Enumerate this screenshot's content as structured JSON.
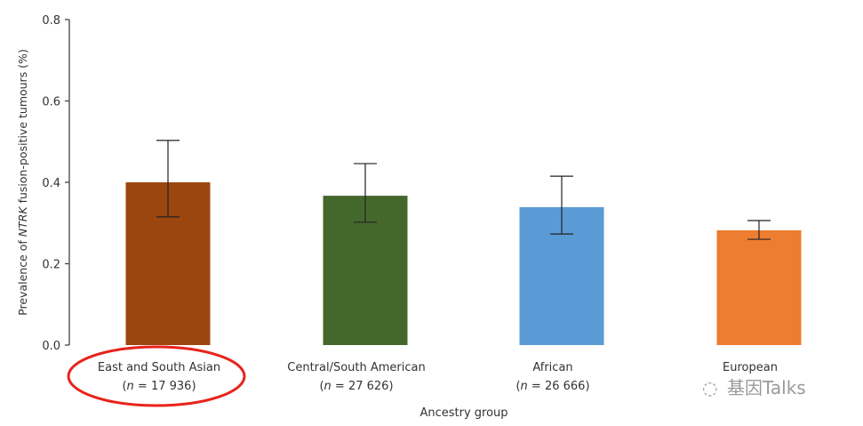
{
  "chart_data": {
    "type": "bar",
    "title": "",
    "xlabel": "Ancestry group",
    "ylabel_parts": [
      "Prevalence of ",
      "NTRK",
      " fusion-positive tumours (%)"
    ],
    "ylim": [
      0,
      0.8
    ],
    "yticks": [
      "0.0",
      "0.2",
      "0.4",
      "0.6",
      "0.8"
    ],
    "grid": false,
    "categories": [
      "East and South Asian",
      "Central/South American",
      "African",
      "European"
    ],
    "n_labels": [
      "17 936",
      "27 626",
      "26 666",
      ""
    ],
    "values": [
      0.4,
      0.367,
      0.339,
      0.282
    ],
    "error_low": [
      0.315,
      0.302,
      0.273,
      0.26
    ],
    "error_high": [
      0.503,
      0.446,
      0.415,
      0.306
    ],
    "colors": [
      "#9c460f",
      "#44682c",
      "#5b9bd5",
      "#ed7d31"
    ],
    "highlight_color": "#e8231b"
  },
  "watermark": "基因Talks"
}
